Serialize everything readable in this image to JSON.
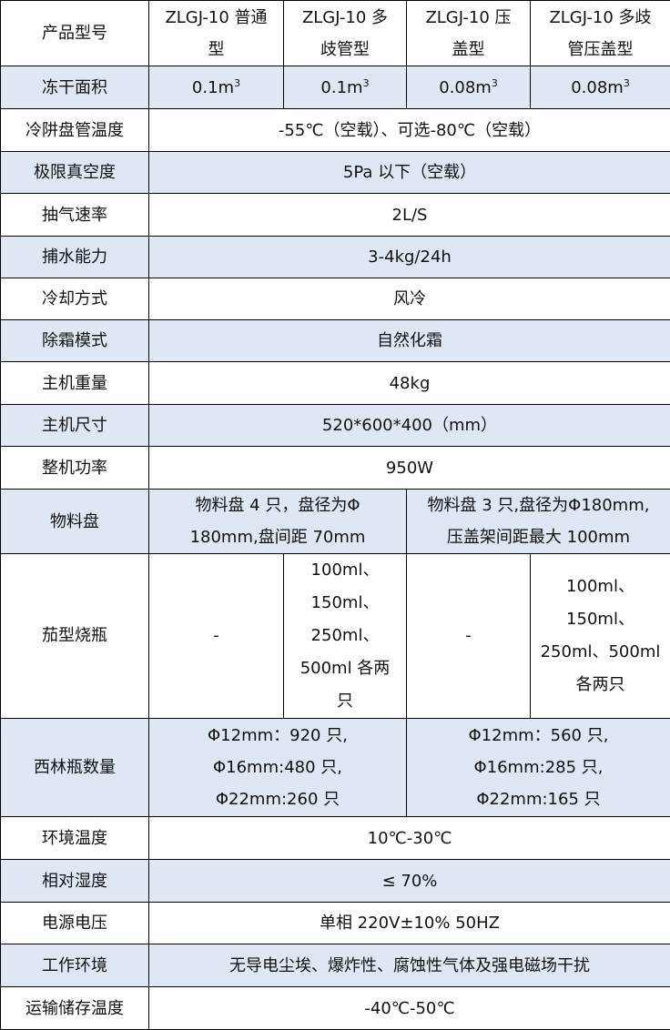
{
  "header": {
    "label": "产品型号",
    "models": [
      "ZLGJ-10 普通\n型",
      "ZLGJ-10 多\n歧管型",
      "ZLGJ-10 压\n盖型",
      "ZLGJ-10 多歧\n管压盖型"
    ]
  },
  "freeze_area": {
    "label": "冻干面积",
    "values": [
      "0.1m",
      "0.1m",
      "0.08m",
      "0.08m"
    ],
    "unit_sup": "3"
  },
  "rows": [
    {
      "label": "冷阱盘管温度",
      "value": "-55℃（空载）、可选-80℃（空载）"
    },
    {
      "label": "极限真空度",
      "value": "5Pa 以下（空载）"
    },
    {
      "label": "抽气速率",
      "value": "2L/S"
    },
    {
      "label": "捕水能力",
      "value": "3-4kg/24h"
    },
    {
      "label": "冷却方式",
      "value": "风冷"
    },
    {
      "label": "除霜模式",
      "value": "自然化霜"
    },
    {
      "label": "主机重量",
      "value": "48kg"
    },
    {
      "label": "主机尺寸",
      "value": "520*600*400（mm）"
    },
    {
      "label": "整机功率",
      "value": "950W"
    }
  ],
  "trays": {
    "label": "物料盘",
    "values": [
      "物料盘 4 只，盘径为Φ\n180mm,盘间距 70mm",
      "物料盘 3 只,盘径为Φ180mm,\n压盖架间距最大 100mm"
    ]
  },
  "flasks": {
    "label": "茄型烧瓶",
    "values": [
      "-",
      "100ml、\n150ml、\n250ml、\n500ml 各两\n只",
      "-",
      "100ml、\n150ml、\n250ml、500ml\n各两只"
    ]
  },
  "vials": {
    "label": "西林瓶数量",
    "values": [
      "Φ12mm：920 只,\nΦ16mm:480 只,\nΦ22mm:260 只",
      "Φ12mm：560 只,\nΦ16mm:285 只,\nΦ22mm:165 只"
    ]
  },
  "rows2": [
    {
      "label": "环境温度",
      "value": "10℃-30℃"
    },
    {
      "label": "相对湿度",
      "value": "≤ 70%"
    },
    {
      "label": "电源电压",
      "value": "单相 220V±10%    50HZ"
    },
    {
      "label": "工作环境",
      "value": "无导电尘埃、爆炸性、腐蚀性气体及强电磁场干扰"
    },
    {
      "label": "运输储存温度",
      "value": "-40℃-50℃"
    }
  ]
}
